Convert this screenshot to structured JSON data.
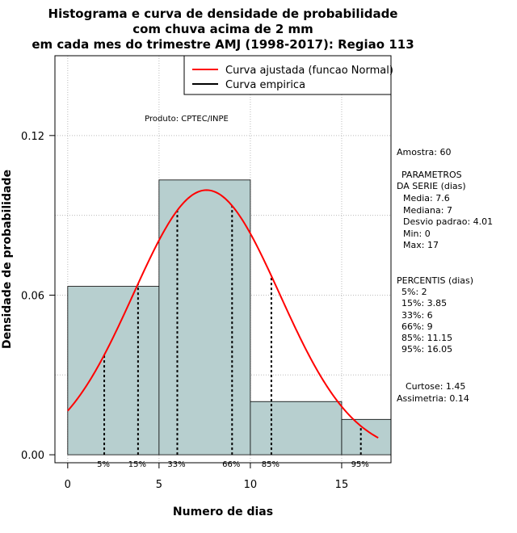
{
  "chart_data": {
    "type": "bar",
    "title_lines": [
      "Histograma e curva de densidade de probabilidade",
      "com chuva acima de 2 mm",
      "em cada mes do trimestre AMJ (1998-2017): Regiao 113"
    ],
    "xlabel": "Numero de dias",
    "ylabel": "Densidade de probabilidade",
    "xlim": [
      -0.7,
      17.7
    ],
    "ylim": [
      -0.003,
      0.15
    ],
    "xticks": [
      0,
      5,
      10,
      15
    ],
    "xtick_labels": [
      "0",
      "5",
      "10",
      "15"
    ],
    "yticks": [
      0,
      0.06,
      0.12
    ],
    "ytick_labels": [
      "0.00",
      "0.06",
      "0.12"
    ],
    "grid": true,
    "legend_position": "top-right",
    "bins": [
      {
        "from": 0,
        "to": 5,
        "density": 0.0633
      },
      {
        "from": 5,
        "to": 10,
        "density": 0.1033
      },
      {
        "from": 10,
        "to": 15,
        "density": 0.02
      },
      {
        "from": 15,
        "to": 17.7,
        "density": 0.0133
      }
    ],
    "series": [
      {
        "name": "Curva ajustada (funcao Normal)",
        "color": "#ff0000",
        "mean": 7.6,
        "sd": 4.01,
        "x_range": [
          0,
          17
        ]
      },
      {
        "name": "Curva empirica",
        "color": "#000000"
      }
    ],
    "percentiles": [
      {
        "label": "5%",
        "x": 2
      },
      {
        "label": "15%",
        "x": 3.85
      },
      {
        "label": "33%",
        "x": 6
      },
      {
        "label": "66%",
        "x": 9
      },
      {
        "label": "85%",
        "x": 11.15
      },
      {
        "label": "95%",
        "x": 16.05
      }
    ],
    "annotation": "Produto: CPTEC/INPE",
    "bar_color": "#b7cfcf"
  },
  "side_panel": {
    "amostra": "Amostra: 60",
    "parametros_title": "PARAMETROS",
    "parametros_subtitle": "DA SERIE (dias)",
    "media": "Media: 7.6",
    "mediana": "Mediana: 7",
    "desvio": "Desvio padrao: 4.01",
    "min": "Min: 0",
    "max": "Max: 17",
    "percentis_title": "PERCENTIS (dias)",
    "p5": "5%: 2",
    "p15": "15%: 3.85",
    "p33": "33%: 6",
    "p66": "66%: 9",
    "p85": "85%: 11.15",
    "p95": "95%: 16.05",
    "curtose": "Curtose: 1.45",
    "assimetria": "Assimetria: 0.14"
  }
}
